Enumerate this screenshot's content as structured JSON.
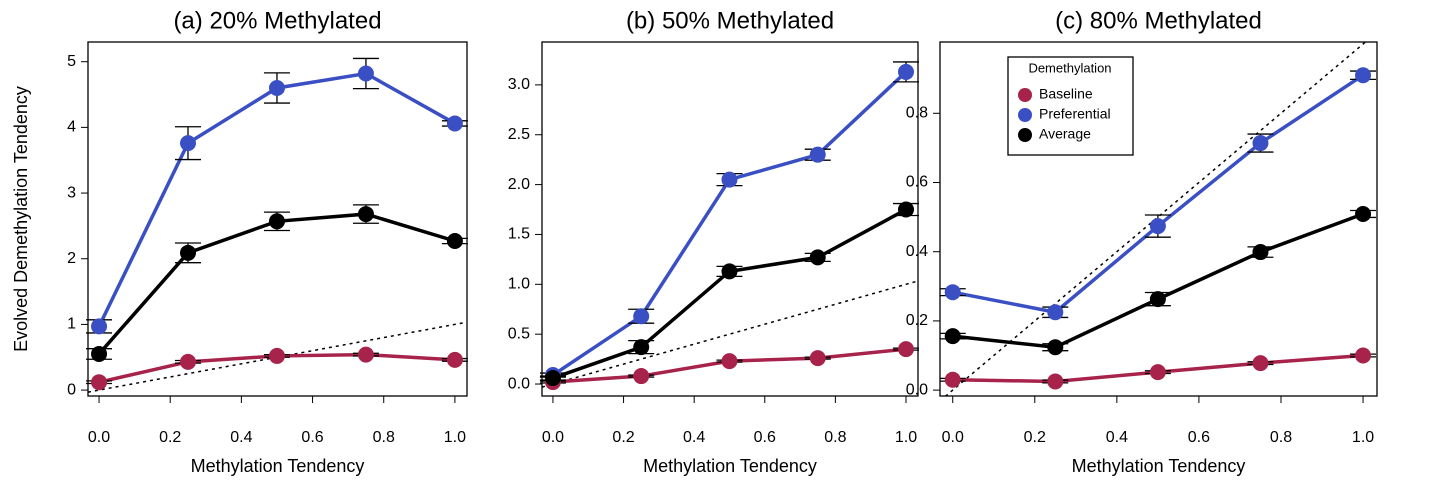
{
  "chart_data": [
    {
      "type": "line",
      "title": "(a) 20% Methylated",
      "x_label": "Methylation Tendency",
      "y_label": "Evolved Demethylation Tendency",
      "x": [
        0,
        0.25,
        0.5,
        0.75,
        1.0
      ],
      "series": [
        {
          "name": "Baseline",
          "color": "#a8234b",
          "values": [
            0.12,
            0.43,
            0.52,
            0.54,
            0.46
          ],
          "errors": [
            0.02,
            0.02,
            0.02,
            0.02,
            0.02
          ]
        },
        {
          "name": "Preferential",
          "color": "#3a4fc4",
          "values": [
            0.97,
            3.76,
            4.6,
            4.82,
            4.06
          ],
          "errors": [
            0.1,
            0.25,
            0.23,
            0.23,
            0.04
          ]
        },
        {
          "name": "Average",
          "color": "#000000",
          "values": [
            0.55,
            2.09,
            2.57,
            2.68,
            2.27
          ],
          "errors": [
            0.08,
            0.15,
            0.14,
            0.14,
            0.04
          ]
        }
      ],
      "xlim": [
        -0.031,
        1.034
      ],
      "ylim": [
        -0.09,
        5.3
      ],
      "xticks": [
        {
          "value": 0,
          "label": "0.0"
        },
        0.2,
        0.4,
        0.6,
        0.8,
        {
          "value": 1,
          "label": "1.0"
        }
      ],
      "yticks": [
        0,
        1,
        2,
        3,
        4,
        5
      ],
      "diagonal": true
    },
    {
      "type": "line",
      "title": "(b) 50% Methylated",
      "x_label": "Methylation Tendency",
      "x": [
        0,
        0.25,
        0.5,
        0.75,
        1.0
      ],
      "series": [
        {
          "name": "Baseline",
          "color": "#a8234b",
          "values": [
            0.02,
            0.08,
            0.23,
            0.26,
            0.35
          ],
          "errors": [
            0.01,
            0.01,
            0.01,
            0.01,
            0.01
          ]
        },
        {
          "name": "Preferential",
          "color": "#3a4fc4",
          "values": [
            0.09,
            0.68,
            2.05,
            2.3,
            3.13
          ],
          "errors": [
            0.02,
            0.07,
            0.06,
            0.055,
            0.1
          ]
        },
        {
          "name": "Average",
          "color": "#000000",
          "values": [
            0.06,
            0.37,
            1.13,
            1.27,
            1.75
          ],
          "errors": [
            0.02,
            0.065,
            0.05,
            0.04,
            0.06
          ]
        }
      ],
      "xlim": [
        -0.031,
        1.034
      ],
      "ylim": [
        -0.12,
        3.43
      ],
      "xticks": [
        {
          "value": 0,
          "label": "0.0"
        },
        0.2,
        0.4,
        0.6,
        0.8,
        {
          "value": 1,
          "label": "1.0"
        }
      ],
      "yticks": [
        {
          "value": 0,
          "label": "0.0"
        },
        0.5,
        {
          "value": 1,
          "label": "1.0"
        },
        1.5,
        {
          "value": 2,
          "label": "2.0"
        },
        2.5,
        {
          "value": 3,
          "label": "3.0"
        }
      ],
      "diagonal": true
    },
    {
      "type": "line",
      "title": "(c) 80% Methylated",
      "x_label": "Methylation Tendency",
      "x": [
        0,
        0.25,
        0.5,
        0.75,
        1.0
      ],
      "series": [
        {
          "name": "Baseline",
          "color": "#a8234b",
          "values": [
            0.03,
            0.025,
            0.052,
            0.078,
            0.1
          ],
          "errors": [
            0.004,
            0.004,
            0.004,
            0.004,
            0.004
          ]
        },
        {
          "name": "Preferential",
          "color": "#3a4fc4",
          "values": [
            0.283,
            0.225,
            0.474,
            0.714,
            0.91
          ],
          "errors": [
            0.01,
            0.015,
            0.032,
            0.026,
            0.012
          ]
        },
        {
          "name": "Average",
          "color": "#000000",
          "values": [
            0.156,
            0.124,
            0.263,
            0.399,
            0.509
          ],
          "errors": [
            0.008,
            0.01,
            0.019,
            0.015,
            0.01
          ]
        }
      ],
      "xlim": [
        -0.031,
        1.034
      ],
      "ylim": [
        -0.017,
        1.006
      ],
      "xticks": [
        {
          "value": 0,
          "label": "0.0"
        },
        0.2,
        0.4,
        0.6,
        0.8,
        {
          "value": 1,
          "label": "1.0"
        }
      ],
      "yticks": [
        {
          "value": 0,
          "label": "0.0"
        },
        0.2,
        0.4,
        0.6,
        0.8
      ],
      "diagonal": true,
      "legend_title": "Demethylation",
      "legend": "top-left"
    }
  ]
}
